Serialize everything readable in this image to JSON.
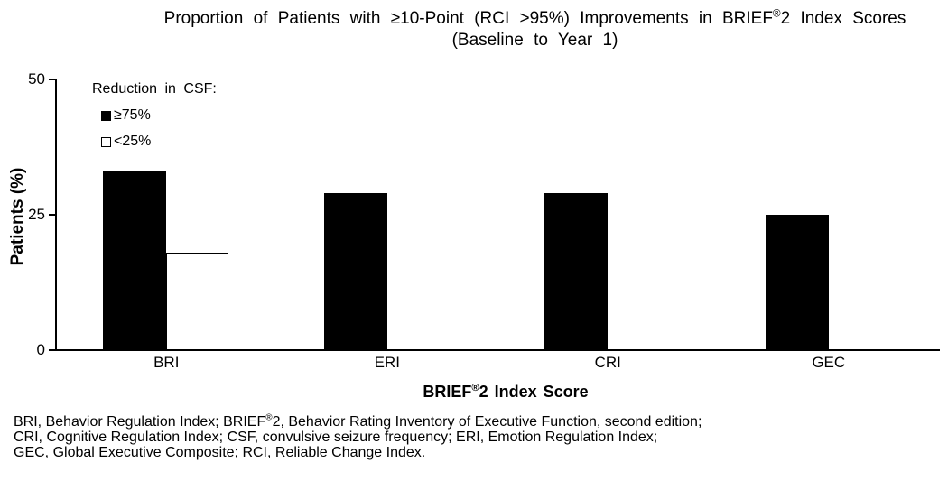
{
  "title": {
    "line1_pre": "Proportion of Patients with ≥10-Point (RCI >95%) Improvements in BRIEF",
    "line1_sup": "®",
    "line1_post": "2 Index Scores",
    "line2": "(Baseline to Year 1)"
  },
  "legend": {
    "heading": "Reduction in CSF:",
    "items": [
      {
        "label": "≥75%",
        "fill": "#000000"
      },
      {
        "label": "<25%",
        "fill": "#ffffff"
      }
    ]
  },
  "axes": {
    "y_label": "Patients (%)",
    "x_label_pre": "BRIEF",
    "x_label_sup": "®",
    "x_label_post": "2 Index Score",
    "y_ticks": [
      "0",
      "25",
      "50"
    ]
  },
  "chart_data": {
    "type": "bar",
    "categories": [
      "BRI",
      "ERI",
      "CRI",
      "GEC"
    ],
    "series": [
      {
        "name": "≥75%",
        "color": "#000000",
        "values": [
          33,
          29,
          29,
          25
        ]
      },
      {
        "name": "<25%",
        "color": "#ffffff",
        "values": [
          18,
          0,
          0,
          0
        ]
      }
    ],
    "title": "Proportion of Patients with ≥10-Point (RCI >95%) Improvements in BRIEF®2 Index Scores (Baseline to Year 1)",
    "xlabel": "BRIEF®2 Index Score",
    "ylabel": "Patients (%)",
    "ylim": [
      0,
      50
    ],
    "yticks": [
      0,
      25,
      50
    ],
    "legend_title": "Reduction in CSF:",
    "legend_position": "upper-left-inside",
    "grid": false,
    "bar_colors_note": "series 1 solid black fill; series 2 white fill with black outline"
  },
  "footnote": {
    "line1_pre": "BRI, Behavior Regulation Index; BRIEF",
    "line1_sup": "®",
    "line1_post": "2, Behavior Rating Inventory of Executive Function, second edition;",
    "line2": "CRI, Cognitive Regulation Index; CSF, convulsive seizure frequency; ERI, Emotion Regulation Index;",
    "line3": "GEC, Global Executive Composite; RCI, Reliable Change Index."
  }
}
